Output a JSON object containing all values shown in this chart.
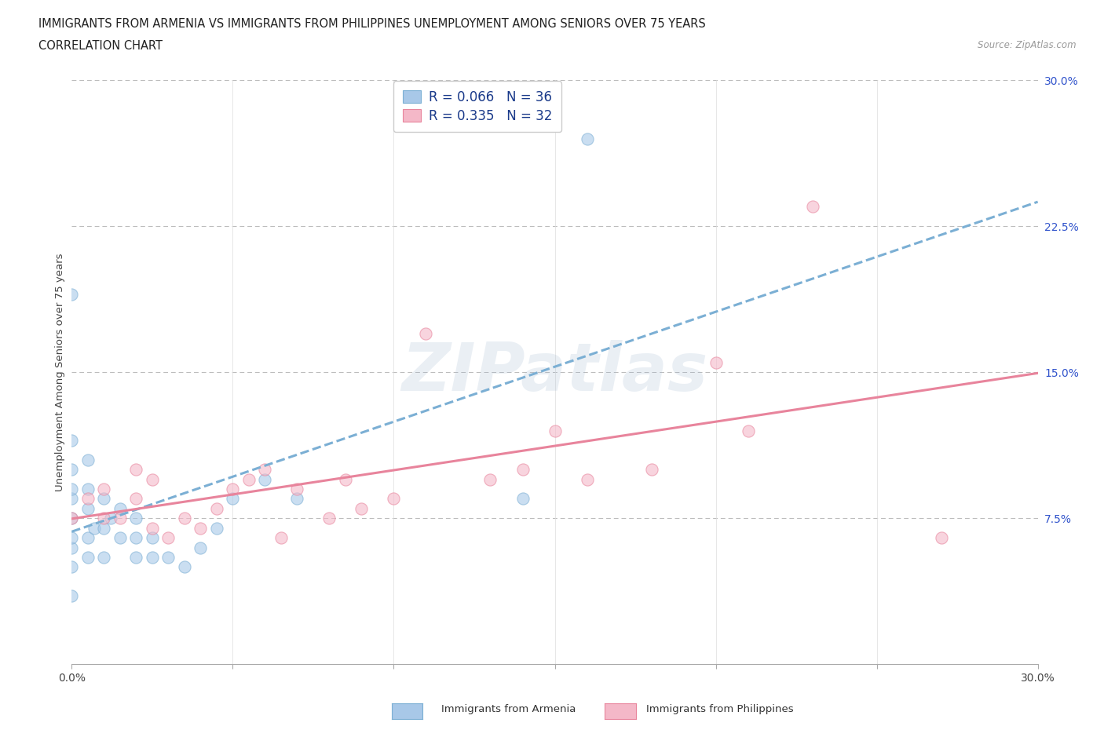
{
  "title_line1": "IMMIGRANTS FROM ARMENIA VS IMMIGRANTS FROM PHILIPPINES UNEMPLOYMENT AMONG SENIORS OVER 75 YEARS",
  "title_line2": "CORRELATION CHART",
  "source_text": "Source: ZipAtlas.com",
  "ylabel": "Unemployment Among Seniors over 75 years",
  "xlim": [
    0.0,
    0.3
  ],
  "ylim": [
    0.0,
    0.3
  ],
  "armenia_color": "#a8c8e8",
  "armenia_edge_color": "#7bafd4",
  "philippines_color": "#f4b8c8",
  "philippines_edge_color": "#e8849c",
  "armenia_trend_color": "#7bafd4",
  "philippines_trend_color": "#e8849c",
  "legend_armenia_R": "0.066",
  "legend_armenia_N": "36",
  "legend_philippines_R": "0.335",
  "legend_philippines_N": "32",
  "legend_R_color": "#1a3a8a",
  "legend_N_color": "#1a3a8a",
  "ytick_color": "#3355cc",
  "xtick_color": "#444444",
  "grid_color": "#bbbbbb",
  "background_color": "#ffffff",
  "title_fontsize": 10.5,
  "label_fontsize": 9.5,
  "tick_fontsize": 10,
  "legend_fontsize": 12,
  "scatter_alpha": 0.6,
  "scatter_size": 120,
  "watermark_color": "#c8d8e8",
  "watermark_alpha": 0.7,
  "armenia_scatter_x": [
    0.0,
    0.0,
    0.0,
    0.0,
    0.0,
    0.0,
    0.0,
    0.0,
    0.0,
    0.0,
    0.005,
    0.005,
    0.005,
    0.005,
    0.005,
    0.007,
    0.01,
    0.01,
    0.01,
    0.012,
    0.015,
    0.015,
    0.02,
    0.02,
    0.02,
    0.025,
    0.025,
    0.03,
    0.035,
    0.04,
    0.045,
    0.05,
    0.06,
    0.07,
    0.14,
    0.16
  ],
  "armenia_scatter_y": [
    0.035,
    0.05,
    0.06,
    0.065,
    0.075,
    0.085,
    0.09,
    0.1,
    0.115,
    0.19,
    0.055,
    0.065,
    0.08,
    0.09,
    0.105,
    0.07,
    0.055,
    0.07,
    0.085,
    0.075,
    0.065,
    0.08,
    0.055,
    0.065,
    0.075,
    0.055,
    0.065,
    0.055,
    0.05,
    0.06,
    0.07,
    0.085,
    0.095,
    0.085,
    0.085,
    0.27
  ],
  "philippines_scatter_x": [
    0.0,
    0.005,
    0.01,
    0.01,
    0.015,
    0.02,
    0.02,
    0.025,
    0.025,
    0.03,
    0.035,
    0.04,
    0.045,
    0.05,
    0.055,
    0.06,
    0.065,
    0.07,
    0.08,
    0.085,
    0.09,
    0.1,
    0.11,
    0.13,
    0.14,
    0.15,
    0.16,
    0.18,
    0.2,
    0.21,
    0.23,
    0.27
  ],
  "philippines_scatter_y": [
    0.075,
    0.085,
    0.075,
    0.09,
    0.075,
    0.085,
    0.1,
    0.07,
    0.095,
    0.065,
    0.075,
    0.07,
    0.08,
    0.09,
    0.095,
    0.1,
    0.065,
    0.09,
    0.075,
    0.095,
    0.08,
    0.085,
    0.17,
    0.095,
    0.1,
    0.12,
    0.095,
    0.1,
    0.155,
    0.12,
    0.235,
    0.065
  ]
}
